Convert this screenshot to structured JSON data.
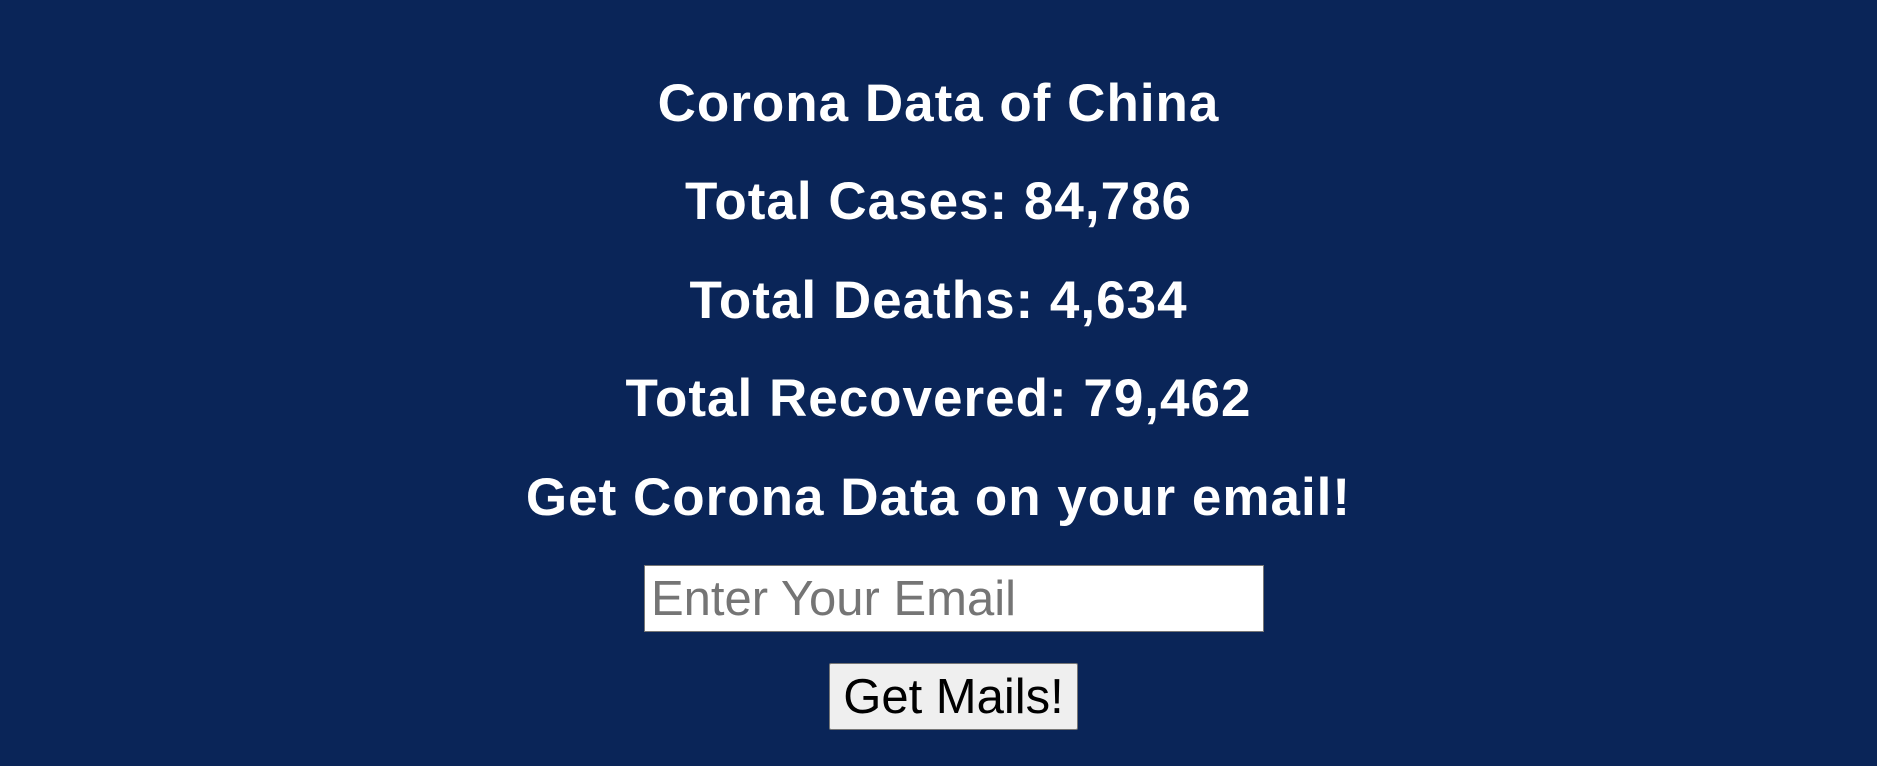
{
  "heading": {
    "title": "Corona Data of China",
    "total_cases": "Total Cases: 84,786",
    "total_deaths": "Total Deaths: 4,634",
    "total_recovered": "Total Recovered: 79,462",
    "cta": "Get Corona Data on your email!"
  },
  "form": {
    "email_placeholder": "Enter Your Email",
    "email_value": "",
    "submit_label": "Get Mails!"
  },
  "colors": {
    "background": "#0a2558",
    "text": "#ffffff",
    "button_bg": "#efefef"
  }
}
